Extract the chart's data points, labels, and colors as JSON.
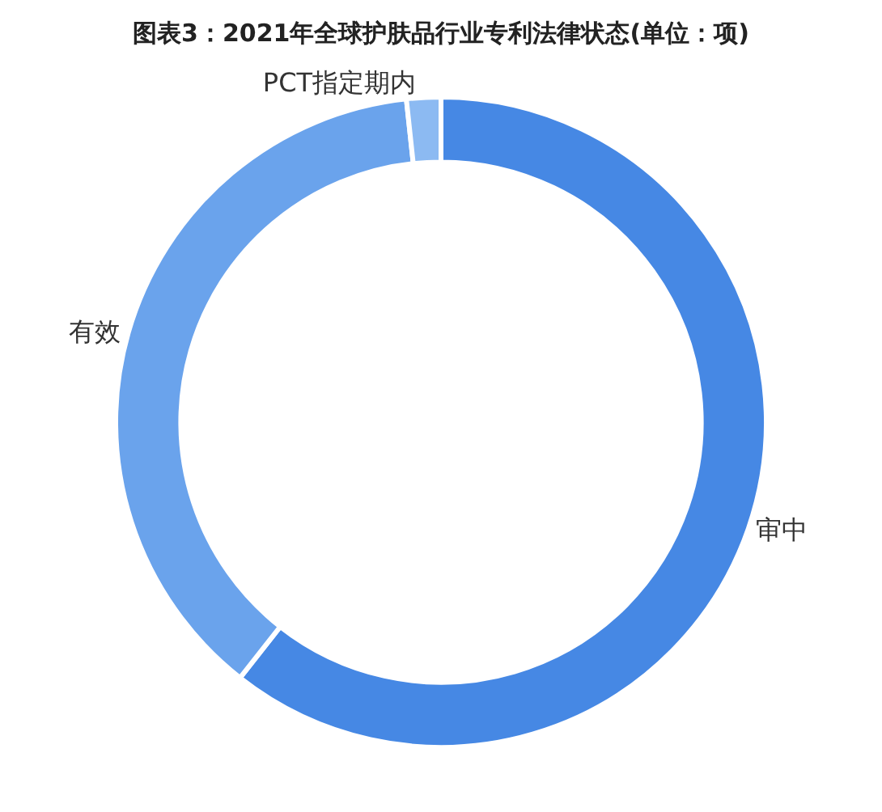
{
  "chart_data": {
    "type": "donut",
    "title": "图表3：2021年全球护肤品行业专利法律状态(单位：项)",
    "categories": [
      "审中",
      "有效",
      "PCT指定期内"
    ],
    "values": [
      60.6,
      37.7,
      1.7
    ],
    "colors": [
      "#4688e4",
      "#6aa3ec",
      "#8cbaf2"
    ],
    "legend": false
  }
}
